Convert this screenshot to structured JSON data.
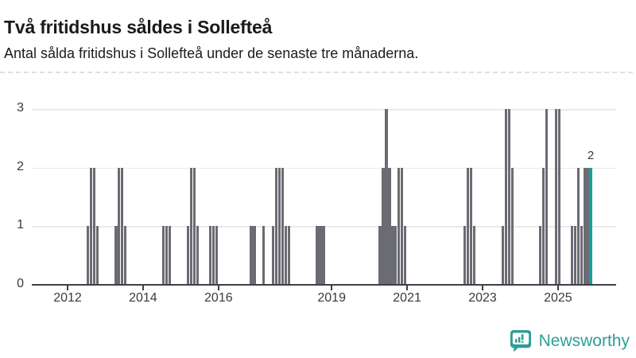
{
  "header": {
    "title": "Två fritidshus såldes i Sollefteå",
    "subtitle": "Antal sålda fritidshus i Sollefteå under de senaste tre månaderna."
  },
  "chart_data": {
    "type": "bar",
    "title": "Två fritidshus såldes i Sollefteå",
    "subtitle": "Antal sålda fritidshus i Sollefteå under de senaste tre månaderna.",
    "ylabel": "",
    "xlabel": "",
    "ylim": [
      0,
      3
    ],
    "yticks": [
      0,
      1,
      2,
      3
    ],
    "xtick_years": [
      2012,
      2014,
      2016,
      2019,
      2021,
      2023,
      2025
    ],
    "grid": "horizontal",
    "series": [
      {
        "month": "2012-07",
        "value": 1
      },
      {
        "month": "2012-08",
        "value": 2
      },
      {
        "month": "2012-09",
        "value": 2
      },
      {
        "month": "2012-10",
        "value": 1
      },
      {
        "month": "2013-04",
        "value": 1
      },
      {
        "month": "2013-05",
        "value": 2
      },
      {
        "month": "2013-06",
        "value": 2
      },
      {
        "month": "2013-07",
        "value": 1
      },
      {
        "month": "2014-07",
        "value": 1
      },
      {
        "month": "2014-08",
        "value": 1
      },
      {
        "month": "2014-09",
        "value": 1
      },
      {
        "month": "2015-03",
        "value": 1
      },
      {
        "month": "2015-04",
        "value": 2
      },
      {
        "month": "2015-05",
        "value": 2
      },
      {
        "month": "2015-06",
        "value": 1
      },
      {
        "month": "2015-10",
        "value": 1
      },
      {
        "month": "2015-11",
        "value": 1
      },
      {
        "month": "2015-12",
        "value": 1
      },
      {
        "month": "2016-11",
        "value": 1
      },
      {
        "month": "2016-12",
        "value": 1
      },
      {
        "month": "2017-03",
        "value": 1
      },
      {
        "month": "2017-06",
        "value": 1
      },
      {
        "month": "2017-07",
        "value": 2
      },
      {
        "month": "2017-08",
        "value": 2
      },
      {
        "month": "2017-09",
        "value": 2
      },
      {
        "month": "2017-10",
        "value": 1
      },
      {
        "month": "2017-11",
        "value": 1
      },
      {
        "month": "2018-08",
        "value": 1
      },
      {
        "month": "2018-09",
        "value": 1
      },
      {
        "month": "2018-10",
        "value": 1
      },
      {
        "month": "2020-04",
        "value": 1
      },
      {
        "month": "2020-05",
        "value": 2
      },
      {
        "month": "2020-06",
        "value": 3
      },
      {
        "month": "2020-07",
        "value": 2
      },
      {
        "month": "2020-08",
        "value": 1
      },
      {
        "month": "2020-09",
        "value": 1
      },
      {
        "month": "2020-10",
        "value": 2
      },
      {
        "month": "2020-11",
        "value": 2
      },
      {
        "month": "2020-12",
        "value": 1
      },
      {
        "month": "2022-07",
        "value": 1
      },
      {
        "month": "2022-08",
        "value": 2
      },
      {
        "month": "2022-09",
        "value": 2
      },
      {
        "month": "2022-10",
        "value": 1
      },
      {
        "month": "2023-07",
        "value": 1
      },
      {
        "month": "2023-08",
        "value": 3
      },
      {
        "month": "2023-09",
        "value": 3
      },
      {
        "month": "2023-10",
        "value": 2
      },
      {
        "month": "2024-07",
        "value": 1
      },
      {
        "month": "2024-08",
        "value": 2
      },
      {
        "month": "2024-09",
        "value": 3
      },
      {
        "month": "2024-12",
        "value": 3
      },
      {
        "month": "2025-01",
        "value": 3
      },
      {
        "month": "2025-05",
        "value": 1
      },
      {
        "month": "2025-06",
        "value": 1
      },
      {
        "month": "2025-07",
        "value": 2
      },
      {
        "month": "2025-08",
        "value": 1
      },
      {
        "month": "2025-09",
        "value": 2
      },
      {
        "month": "2025-10",
        "value": 2
      },
      {
        "month": "2025-11",
        "value": 2
      }
    ],
    "highlight": {
      "month": "2025-11",
      "value": 2,
      "label": "2"
    },
    "colors": {
      "bar": "#6b6b73",
      "highlight": "#14a29d",
      "grid": "#eaeaea",
      "axis": "#3f3f46"
    },
    "legend": "none"
  },
  "footer": {
    "brand": "Newsworthy",
    "brand_color": "#2e9e96"
  }
}
